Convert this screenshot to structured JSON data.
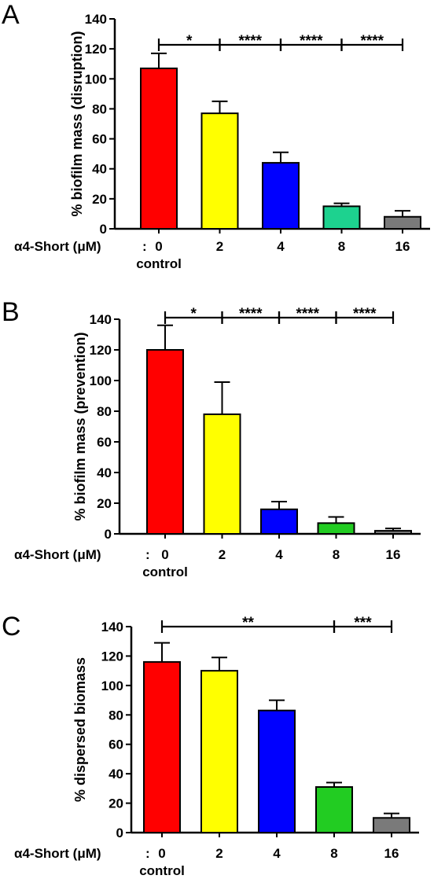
{
  "chart_data": [
    {
      "panel": "A",
      "type": "bar",
      "ylabel": "% biofilm mass (disruption)",
      "xlabel": "α4-Short (μM)",
      "xlabel_sep": ":",
      "categories": [
        "0",
        "2",
        "4",
        "8",
        "16"
      ],
      "category_sublabel": {
        "index": 0,
        "text": "control"
      },
      "values": [
        107,
        77,
        44,
        15,
        8
      ],
      "errors": [
        10,
        8,
        7,
        2,
        4
      ],
      "colors": [
        "#ff0000",
        "#ffff00",
        "#0000ff",
        "#1dd28f",
        "#7a7a7a"
      ],
      "ylim": [
        0,
        140
      ],
      "yticks": [
        "0",
        "20",
        "40",
        "60",
        "80",
        "100",
        "120",
        "140"
      ],
      "significance": [
        {
          "from": 0,
          "to": 1,
          "label": "*"
        },
        {
          "from": 1,
          "to": 2,
          "label": "****"
        },
        {
          "from": 2,
          "to": 3,
          "label": "****"
        },
        {
          "from": 3,
          "to": 4,
          "label": "****"
        }
      ]
    },
    {
      "panel": "B",
      "type": "bar",
      "ylabel": "% biofilm mass (prevention)",
      "xlabel": "α4-Short (μM)",
      "xlabel_sep": ":",
      "categories": [
        "0",
        "2",
        "4",
        "8",
        "16"
      ],
      "category_sublabel": {
        "index": 0,
        "text": "control"
      },
      "values": [
        120,
        78,
        16,
        7,
        2
      ],
      "errors": [
        16,
        21,
        5,
        4,
        1.5
      ],
      "colors": [
        "#ff0000",
        "#ffff00",
        "#0000ff",
        "#22cc22",
        "#7a7a7a"
      ],
      "ylim": [
        0,
        140
      ],
      "yticks": [
        "0",
        "20",
        "40",
        "60",
        "80",
        "100",
        "120",
        "140"
      ],
      "significance": [
        {
          "from": 0,
          "to": 1,
          "label": "*"
        },
        {
          "from": 1,
          "to": 2,
          "label": "****"
        },
        {
          "from": 2,
          "to": 3,
          "label": "****"
        },
        {
          "from": 3,
          "to": 4,
          "label": "****"
        }
      ]
    },
    {
      "panel": "C",
      "type": "bar",
      "ylabel": "% dispersed biomass",
      "xlabel": "α4-Short (μM)",
      "xlabel_sep": ":",
      "categories": [
        "0",
        "2",
        "4",
        "8",
        "16"
      ],
      "category_sublabel": {
        "index": 0,
        "text": "control"
      },
      "values": [
        116,
        110,
        83,
        31,
        10
      ],
      "errors": [
        13,
        9,
        7,
        3,
        3
      ],
      "colors": [
        "#ff0000",
        "#ffff00",
        "#0000ff",
        "#22cc22",
        "#7a7a7a"
      ],
      "ylim": [
        0,
        140
      ],
      "yticks": [
        "0",
        "20",
        "40",
        "60",
        "80",
        "100",
        "120",
        "140"
      ],
      "significance": [
        {
          "from": 0,
          "to": 3,
          "label": "**"
        },
        {
          "from": 3,
          "to": 4,
          "label": "***"
        }
      ]
    }
  ]
}
